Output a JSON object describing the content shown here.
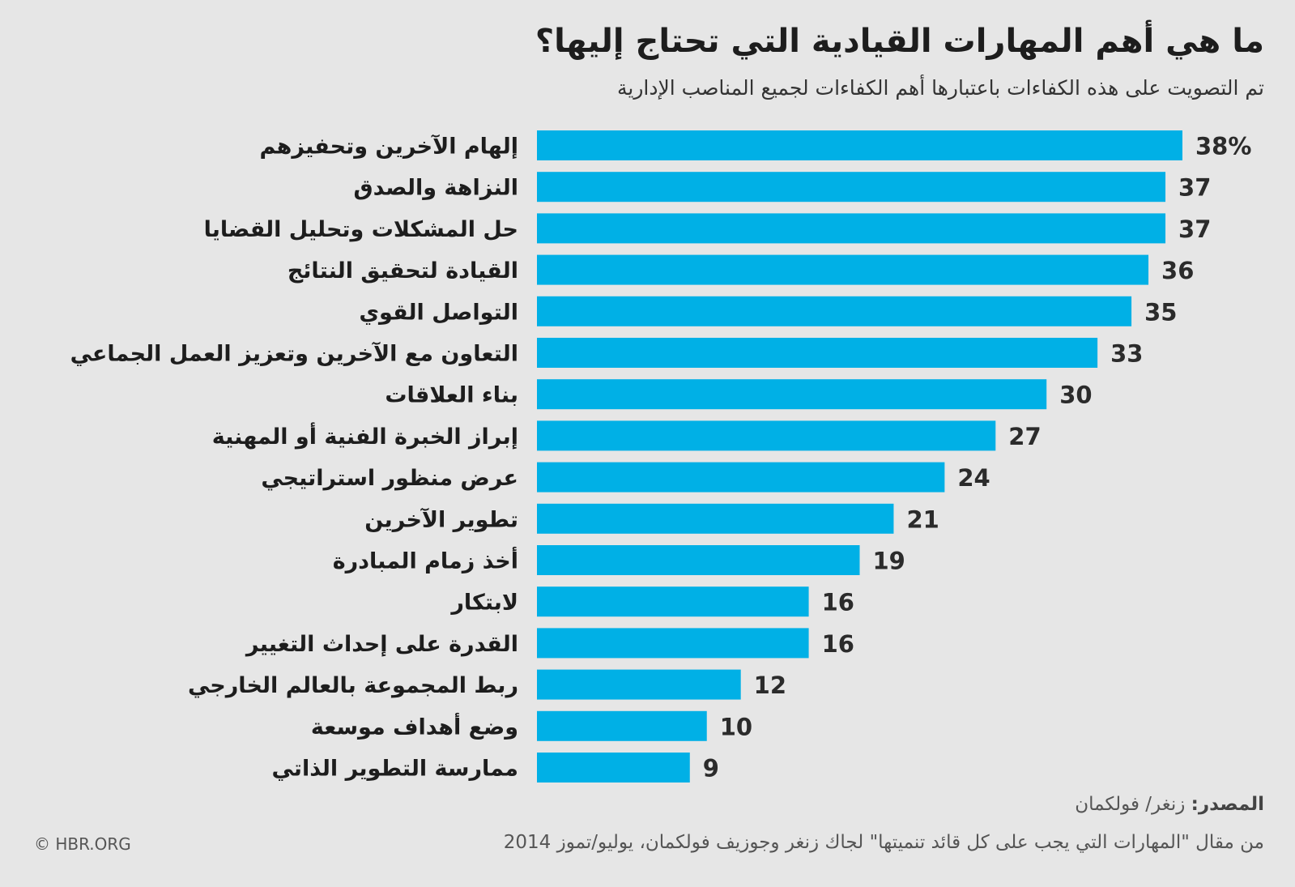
{
  "chart_data": {
    "type": "bar",
    "orientation": "horizontal",
    "title": "ما هي أهم المهارات القيادية التي تحتاج إليها؟",
    "subtitle": "تم التصويت على هذه الكفاءات باعتبارها أهم الكفاءات لجميع المناصب الإدارية",
    "categories": [
      "إلهام الآخرين وتحفيزهم",
      "النزاهة والصدق",
      "حل المشكلات وتحليل القضايا",
      "القيادة لتحقيق النتائج",
      "التواصل القوي",
      "التعاون مع الآخرين وتعزيز العمل الجماعي",
      "بناء العلاقات",
      "إبراز الخبرة الفنية أو المهنية",
      "عرض منظور استراتيجي",
      "تطوير الآخرين",
      "أخذ زمام المبادرة",
      "لابتكار",
      "القدرة على إحداث التغيير",
      "ربط المجموعة بالعالم الخارجي",
      "وضع أهداف موسعة",
      "ممارسة التطوير الذاتي"
    ],
    "values": [
      38,
      37,
      37,
      36,
      35,
      33,
      30,
      27,
      24,
      21,
      19,
      16,
      16,
      12,
      10,
      9
    ],
    "value_labels": [
      "38%",
      "37",
      "37",
      "36",
      "35",
      "33",
      "30",
      "27",
      "24",
      "21",
      "19",
      "16",
      "16",
      "12",
      "10",
      "9"
    ],
    "unit": "%",
    "xlim": [
      0,
      38
    ],
    "grid": false,
    "bar_color": "#00b0e6"
  },
  "source": {
    "label": "المصدر:",
    "text": "زنغر/ فولكمان"
  },
  "article_note": "من مقال \"المهارات التي يجب على كل قائد تنميتها\" لجاك زنغر وجوزيف فولكمان، يوليو/تموز 2014",
  "credit": "© HBR.ORG"
}
